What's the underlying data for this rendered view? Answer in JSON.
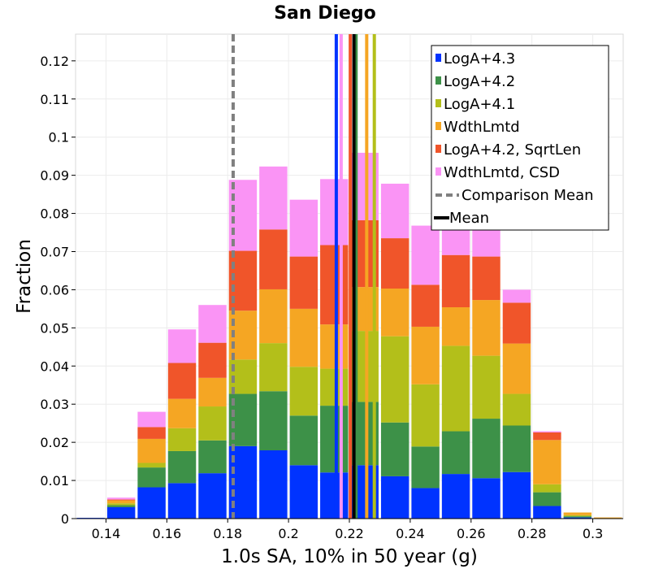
{
  "chart_data": {
    "type": "bar",
    "stacked": true,
    "title": "San Diego",
    "xlabel": "1.0s SA, 10% in 50 year (g)",
    "ylabel": "Fraction",
    "xlim": [
      0.13,
      0.31
    ],
    "ylim": [
      0,
      0.127
    ],
    "xticks": [
      0.14,
      0.16,
      0.18,
      0.2,
      0.22,
      0.24,
      0.26,
      0.28,
      0.3
    ],
    "xtick_labels": [
      "0.14",
      "0.16",
      "0.18",
      "0.2",
      "0.22",
      "0.24",
      "0.26",
      "0.28",
      "0.3"
    ],
    "yticks": [
      0,
      0.01,
      0.02,
      0.03,
      0.04,
      0.05,
      0.06,
      0.07,
      0.08,
      0.09,
      0.1,
      0.11,
      0.12
    ],
    "ytick_labels": [
      "0",
      "0.01",
      "0.02",
      "0.03",
      "0.04",
      "0.05",
      "0.06",
      "0.07",
      "0.08",
      "0.09",
      "0.1",
      "0.11",
      "0.12"
    ],
    "grid": true,
    "bin_width": 0.01,
    "bin_centers": [
      0.135,
      0.145,
      0.155,
      0.165,
      0.175,
      0.185,
      0.195,
      0.205,
      0.215,
      0.225,
      0.235,
      0.245,
      0.255,
      0.265,
      0.275,
      0.285,
      0.295,
      0.305
    ],
    "series": [
      {
        "name": "LogA+4.3",
        "color": "#0033ff",
        "values": [
          0.0002,
          0.003,
          0.0082,
          0.0093,
          0.0119,
          0.019,
          0.0179,
          0.014,
          0.0121,
          0.014,
          0.0111,
          0.008,
          0.0117,
          0.0106,
          0.0122,
          0.0033,
          0.0003,
          0
        ]
      },
      {
        "name": "LogA+4.2",
        "color": "#3d9148",
        "values": [
          0,
          0.0005,
          0.0052,
          0.0084,
          0.0086,
          0.0137,
          0.0155,
          0.013,
          0.0175,
          0.0166,
          0.0141,
          0.0109,
          0.0112,
          0.0156,
          0.0122,
          0.0036,
          0.0003,
          0
        ]
      },
      {
        "name": "LogA+4.1",
        "color": "#b3bf1a",
        "values": [
          0,
          0.0005,
          0.0012,
          0.006,
          0.0089,
          0.009,
          0.0126,
          0.0128,
          0.0097,
          0.0186,
          0.0226,
          0.0163,
          0.0224,
          0.0165,
          0.0083,
          0.0021,
          0.0003,
          0
        ]
      },
      {
        "name": "WdthLmtd",
        "color": "#f5a623",
        "values": [
          0,
          0.0008,
          0.0063,
          0.0077,
          0.0075,
          0.0128,
          0.0141,
          0.0152,
          0.0116,
          0.0115,
          0.0125,
          0.0151,
          0.0101,
          0.0146,
          0.0132,
          0.0116,
          0.0007,
          0.0003
        ]
      },
      {
        "name": "LogA+4.2, SqrtLen",
        "color": "#f0552a",
        "values": [
          0,
          0.0002,
          0.0031,
          0.0094,
          0.0092,
          0.0157,
          0.0157,
          0.0137,
          0.0208,
          0.0175,
          0.0132,
          0.011,
          0.0137,
          0.0114,
          0.0107,
          0.002,
          0,
          0
        ]
      },
      {
        "name": "WdthLmtd, CSD",
        "color": "#fa94f5",
        "values": [
          0,
          0.0005,
          0.004,
          0.0088,
          0.0099,
          0.0186,
          0.0165,
          0.0149,
          0.0173,
          0.0177,
          0.0143,
          0.0155,
          0.0079,
          0.0131,
          0.0034,
          0.0003,
          0,
          0
        ]
      }
    ],
    "vlines": [
      {
        "name": "LogA+4.3 mean",
        "x": 0.2157,
        "color": "#0033ff",
        "style": "solid"
      },
      {
        "name": "LogA+4.2 mean",
        "x": 0.2222,
        "color": "#3d9148",
        "style": "solid"
      },
      {
        "name": "LogA+4.1 mean",
        "x": 0.2282,
        "color": "#b3bf1a",
        "style": "solid"
      },
      {
        "name": "WdthLmtd mean",
        "x": 0.2257,
        "color": "#f5a623",
        "style": "solid"
      },
      {
        "name": "LogA+4.2, SqrtLen mean",
        "x": 0.2203,
        "color": "#f0552a",
        "style": "solid"
      },
      {
        "name": "WdthLmtd, CSD mean",
        "x": 0.2173,
        "color": "#fa94f5",
        "style": "solid"
      },
      {
        "name": "Comparison Mean",
        "x": 0.1818,
        "color": "#808080",
        "style": "dashed"
      },
      {
        "name": "Mean",
        "x": 0.2215,
        "color": "#000000",
        "style": "solid"
      }
    ],
    "legend": {
      "position": "top-right",
      "entries": [
        {
          "label": "LogA+4.3",
          "color": "#0033ff",
          "kind": "box"
        },
        {
          "label": "LogA+4.2",
          "color": "#3d9148",
          "kind": "box"
        },
        {
          "label": "LogA+4.1",
          "color": "#b3bf1a",
          "kind": "box"
        },
        {
          "label": "WdthLmtd",
          "color": "#f5a623",
          "kind": "box"
        },
        {
          "label": "LogA+4.2, SqrtLen",
          "color": "#f0552a",
          "kind": "box"
        },
        {
          "label": "WdthLmtd, CSD",
          "color": "#fa94f5",
          "kind": "box"
        },
        {
          "label": "Comparison Mean",
          "color": "#808080",
          "kind": "dashed-line"
        },
        {
          "label": "Mean",
          "color": "#000000",
          "kind": "line"
        }
      ]
    }
  }
}
